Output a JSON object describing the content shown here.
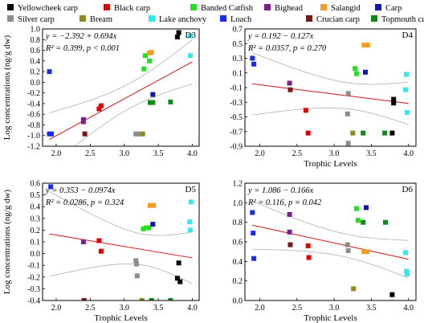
{
  "legend": [
    {
      "name": "Yellowcheek carp",
      "color": "#000000"
    },
    {
      "name": "Black carp",
      "color": "#e00000"
    },
    {
      "name": "Banded Catfish",
      "color": "#22e01e"
    },
    {
      "name": "Bighead",
      "color": "#7a1f8e"
    },
    {
      "name": "Salangid",
      "color": "#f59a22"
    },
    {
      "name": "Carp",
      "color": "#0a1aa8"
    },
    {
      "name": "Silver carp",
      "color": "#8c8c8c"
    },
    {
      "name": "Bream",
      "color": "#8f8a16"
    },
    {
      "name": "Lake anchovy",
      "color": "#33e8f0"
    },
    {
      "name": "Loach",
      "color": "#1a2cf2"
    },
    {
      "name": "Crucian carp",
      "color": "#7a1616"
    },
    {
      "name": "Topmouth culter",
      "color": "#0f8a1a"
    }
  ],
  "chart_data": [
    {
      "type": "scatter",
      "panel": "D3",
      "xlabel": "",
      "ylabel": "Log concentrations (ng/g dw)",
      "xlim": [
        1.8,
        4.1
      ],
      "ylim": [
        -1.2,
        1.0
      ],
      "xticks": [
        "2.0",
        "2.5",
        "3.0",
        "3.5",
        "4.0"
      ],
      "yticks": [
        "-1.2",
        "-1.0",
        "-0.8",
        "-0.6",
        "-0.4",
        "-0.2",
        "0.0",
        "0.2",
        "0.4",
        "0.6",
        "0.8",
        "1.0"
      ],
      "equation": "y = −2.392 + 0.694x",
      "stats": "R² = 0.399, p < 0.001",
      "fit": {
        "intercept": -2.392,
        "slope": 0.694
      },
      "points": [
        {
          "x": 1.9,
          "y": 0.2,
          "species": "Loach"
        },
        {
          "x": 1.9,
          "y": -0.97,
          "species": "Loach"
        },
        {
          "x": 1.93,
          "y": -0.97,
          "species": "Loach"
        },
        {
          "x": 2.4,
          "y": -0.7,
          "species": "Bighead"
        },
        {
          "x": 2.4,
          "y": -0.74,
          "species": "Bighead"
        },
        {
          "x": 2.42,
          "y": -0.97,
          "species": "Crucian carp"
        },
        {
          "x": 2.63,
          "y": -0.5,
          "species": "Black carp"
        },
        {
          "x": 2.66,
          "y": -0.44,
          "species": "Black carp"
        },
        {
          "x": 3.17,
          "y": -0.97,
          "species": "Silver carp"
        },
        {
          "x": 3.2,
          "y": -0.97,
          "species": "Silver carp"
        },
        {
          "x": 3.27,
          "y": -0.97,
          "species": "Bream"
        },
        {
          "x": 3.29,
          "y": 0.25,
          "species": "Banded Catfish"
        },
        {
          "x": 3.31,
          "y": 0.5,
          "species": "Banded Catfish"
        },
        {
          "x": 3.37,
          "y": 0.4,
          "species": "Banded Catfish"
        },
        {
          "x": 3.37,
          "y": 0.55,
          "species": "Salangid"
        },
        {
          "x": 3.4,
          "y": 0.56,
          "species": "Salangid"
        },
        {
          "x": 3.42,
          "y": -0.23,
          "species": "Carp"
        },
        {
          "x": 3.38,
          "y": -0.38,
          "species": "Topmouth culter"
        },
        {
          "x": 3.42,
          "y": -0.38,
          "species": "Topmouth culter"
        },
        {
          "x": 3.68,
          "y": -0.37,
          "species": "Topmouth culter"
        },
        {
          "x": 3.78,
          "y": 0.85,
          "species": "Yellowcheek carp"
        },
        {
          "x": 3.8,
          "y": 0.93,
          "species": "Yellowcheek carp"
        },
        {
          "x": 3.97,
          "y": 0.5,
          "species": "Lake anchovy"
        },
        {
          "x": 3.97,
          "y": 0.87,
          "species": "Lake anchovy"
        }
      ]
    },
    {
      "type": "scatter",
      "panel": "D4",
      "xlabel": "Trophic Levels",
      "ylabel": "",
      "xlim": [
        1.8,
        4.1
      ],
      "ylim": [
        -0.9,
        0.7
      ],
      "xticks": [
        "2.0",
        "2.5",
        "3.0",
        "3.5",
        "4.0"
      ],
      "yticks": [
        "-0.9",
        "-0.7",
        "-0.5",
        "-0.3",
        "-0.1",
        "0.1",
        "0.3",
        "0.5",
        "0.7"
      ],
      "equation": "y = 0.192 − 0.127x",
      "stats": "R² = 0.0357, p = 0.270",
      "fit": {
        "intercept": 0.192,
        "slope": -0.127
      },
      "points": [
        {
          "x": 1.9,
          "y": 0.3,
          "species": "Loach"
        },
        {
          "x": 1.92,
          "y": 0.22,
          "species": "Loach"
        },
        {
          "x": 2.4,
          "y": -0.04,
          "species": "Bighead"
        },
        {
          "x": 2.41,
          "y": -0.13,
          "species": "Crucian carp"
        },
        {
          "x": 2.62,
          "y": -0.41,
          "species": "Black carp"
        },
        {
          "x": 2.65,
          "y": -0.72,
          "species": "Black carp"
        },
        {
          "x": 3.18,
          "y": -0.46,
          "species": "Silver carp"
        },
        {
          "x": 3.19,
          "y": -0.18,
          "species": "Silver carp"
        },
        {
          "x": 3.19,
          "y": -0.86,
          "species": "Silver carp"
        },
        {
          "x": 3.25,
          "y": -0.72,
          "species": "Bream"
        },
        {
          "x": 3.28,
          "y": 0.16,
          "species": "Banded Catfish"
        },
        {
          "x": 3.3,
          "y": 0.09,
          "species": "Banded Catfish"
        },
        {
          "x": 3.4,
          "y": 0.48,
          "species": "Salangid"
        },
        {
          "x": 3.45,
          "y": 0.48,
          "species": "Salangid"
        },
        {
          "x": 3.42,
          "y": 0.11,
          "species": "Carp"
        },
        {
          "x": 3.39,
          "y": -0.72,
          "species": "Topmouth culter"
        },
        {
          "x": 3.68,
          "y": -0.72,
          "species": "Topmouth culter"
        },
        {
          "x": 3.78,
          "y": -0.72,
          "species": "Yellowcheek carp"
        },
        {
          "x": 3.8,
          "y": -0.26,
          "species": "Yellowcheek carp"
        },
        {
          "x": 3.8,
          "y": -0.31,
          "species": "Yellowcheek carp"
        },
        {
          "x": 3.97,
          "y": 0.08,
          "species": "Lake anchovy"
        },
        {
          "x": 3.96,
          "y": -0.13,
          "species": "Lake anchovy"
        },
        {
          "x": 3.98,
          "y": -0.44,
          "species": "Lake anchovy"
        }
      ]
    },
    {
      "type": "scatter",
      "panel": "D5",
      "xlabel": "Trophic Levels",
      "ylabel": "Log concentrations (ng/g dw)",
      "xlim": [
        1.8,
        4.1
      ],
      "ylim": [
        -0.4,
        0.6
      ],
      "xticks": [
        "2.0",
        "2.5",
        "3.0",
        "3.5",
        "4.0"
      ],
      "yticks": [
        "-0.4",
        "-0.3",
        "-0.2",
        "-0.1",
        "0.0",
        "0.1",
        "0.2",
        "0.3",
        "0.4",
        "0.5",
        "0.6"
      ],
      "equation": "y = 0.353 − 0.0974x",
      "stats": "R² = 0.0286, p = 0.324",
      "fit": {
        "intercept": 0.353,
        "slope": -0.0974
      },
      "points": [
        {
          "x": 1.92,
          "y": 0.57,
          "species": "Loach"
        },
        {
          "x": 2.4,
          "y": 0.1,
          "species": "Bighead"
        },
        {
          "x": 2.41,
          "y": -0.4,
          "species": "Crucian carp"
        },
        {
          "x": 2.63,
          "y": 0.11,
          "species": "Black carp"
        },
        {
          "x": 2.66,
          "y": 0.02,
          "species": "Black carp"
        },
        {
          "x": 3.17,
          "y": -0.06,
          "species": "Silver carp"
        },
        {
          "x": 3.18,
          "y": -0.09,
          "species": "Silver carp"
        },
        {
          "x": 3.19,
          "y": -0.19,
          "species": "Silver carp"
        },
        {
          "x": 3.26,
          "y": -0.4,
          "species": "Bream"
        },
        {
          "x": 3.28,
          "y": 0.21,
          "species": "Banded Catfish"
        },
        {
          "x": 3.32,
          "y": 0.22,
          "species": "Banded Catfish"
        },
        {
          "x": 3.36,
          "y": 0.22,
          "species": "Banded Catfish"
        },
        {
          "x": 3.38,
          "y": 0.41,
          "species": "Salangid"
        },
        {
          "x": 3.43,
          "y": 0.41,
          "species": "Salangid"
        },
        {
          "x": 3.42,
          "y": 0.25,
          "species": "Carp"
        },
        {
          "x": 3.4,
          "y": -0.4,
          "species": "Topmouth culter"
        },
        {
          "x": 3.68,
          "y": -0.4,
          "species": "Topmouth culter"
        },
        {
          "x": 3.78,
          "y": -0.21,
          "species": "Yellowcheek carp"
        },
        {
          "x": 3.8,
          "y": -0.08,
          "species": "Yellowcheek carp"
        },
        {
          "x": 3.82,
          "y": -0.24,
          "species": "Yellowcheek carp"
        },
        {
          "x": 3.96,
          "y": 0.27,
          "species": "Lake anchovy"
        },
        {
          "x": 3.97,
          "y": 0.2,
          "species": "Lake anchovy"
        },
        {
          "x": 3.98,
          "y": 0.44,
          "species": "Lake anchovy"
        }
      ]
    },
    {
      "type": "scatter",
      "panel": "D6",
      "xlabel": "Trophic Levels",
      "ylabel": "",
      "xlim": [
        1.8,
        4.1
      ],
      "ylim": [
        0.0,
        1.2
      ],
      "xticks": [
        "2.0",
        "2.5",
        "3.0",
        "3.5",
        "4.0"
      ],
      "yticks": [
        "0.0",
        "0.2",
        "0.4",
        "0.6",
        "0.8",
        "1.0",
        "1.2"
      ],
      "equation": "y = 1.086 − 0.166x",
      "stats": "R² = 0.116, p = 0.042",
      "fit": {
        "intercept": 1.086,
        "slope": -0.166
      },
      "points": [
        {
          "x": 1.9,
          "y": 0.9,
          "species": "Loach"
        },
        {
          "x": 1.91,
          "y": 0.69,
          "species": "Loach"
        },
        {
          "x": 1.92,
          "y": 0.43,
          "species": "Loach"
        },
        {
          "x": 2.4,
          "y": 0.88,
          "species": "Bighead"
        },
        {
          "x": 2.4,
          "y": 0.7,
          "species": "Bighead"
        },
        {
          "x": 2.41,
          "y": 0.57,
          "species": "Crucian carp"
        },
        {
          "x": 2.65,
          "y": 0.56,
          "species": "Black carp"
        },
        {
          "x": 2.66,
          "y": 0.44,
          "species": "Black carp"
        },
        {
          "x": 3.18,
          "y": 0.57,
          "species": "Silver carp"
        },
        {
          "x": 3.19,
          "y": 0.51,
          "species": "Silver carp"
        },
        {
          "x": 3.26,
          "y": 0.12,
          "species": "Bream"
        },
        {
          "x": 3.3,
          "y": 0.94,
          "species": "Banded Catfish"
        },
        {
          "x": 3.32,
          "y": 0.82,
          "species": "Banded Catfish"
        },
        {
          "x": 3.4,
          "y": 0.5,
          "species": "Salangid"
        },
        {
          "x": 3.44,
          "y": 0.5,
          "species": "Salangid"
        },
        {
          "x": 3.43,
          "y": 0.95,
          "species": "Carp"
        },
        {
          "x": 3.39,
          "y": 0.8,
          "species": "Topmouth culter"
        },
        {
          "x": 3.69,
          "y": 0.8,
          "species": "Topmouth culter"
        },
        {
          "x": 3.78,
          "y": 0.06,
          "species": "Yellowcheek carp"
        },
        {
          "x": 3.79,
          "y": -0.02,
          "species": "Yellowcheek carp"
        },
        {
          "x": 3.81,
          "y": -0.03,
          "species": "Yellowcheek carp"
        },
        {
          "x": 3.96,
          "y": 0.49,
          "species": "Lake anchovy"
        },
        {
          "x": 3.97,
          "y": 0.3,
          "species": "Lake anchovy"
        },
        {
          "x": 3.98,
          "y": 0.27,
          "species": "Lake anchovy"
        }
      ]
    }
  ]
}
